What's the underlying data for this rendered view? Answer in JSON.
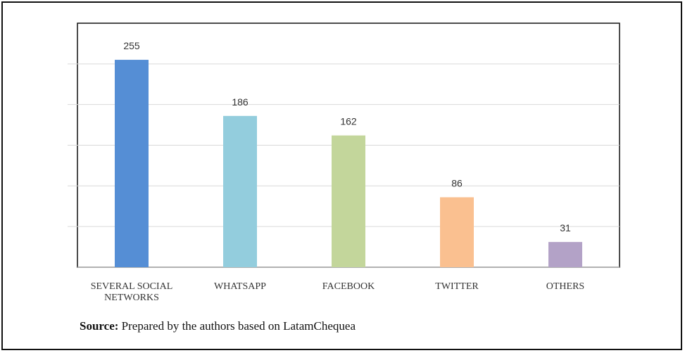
{
  "chart_data": {
    "type": "bar",
    "categories": [
      "SEVERAL SOCIAL\nNETWORKS",
      "WHATSAPP",
      "FACEBOOK",
      "TWITTER",
      "OTHERS"
    ],
    "values": [
      255,
      186,
      162,
      86,
      31
    ],
    "colors": [
      "#558ED5",
      "#93CDDD",
      "#C3D69B",
      "#FAC090",
      "#B3A2C7"
    ],
    "ylim": [
      0,
      300
    ],
    "grid": true,
    "data_labels": true
  },
  "source": {
    "label": "Source:",
    "text": " Prepared by the authors based on LatamChequea"
  }
}
